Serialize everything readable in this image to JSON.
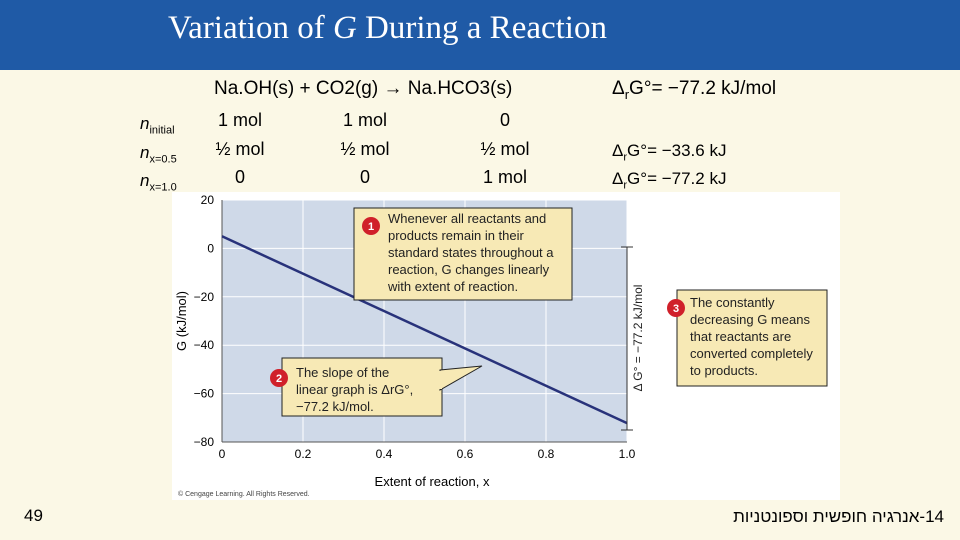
{
  "slide": {
    "title_prefix": "Variation of ",
    "title_var": "G",
    "title_suffix": " During a Reaction",
    "page_number": "49",
    "footer": "14-אנרגיה חופשית וספונטניות"
  },
  "reaction": {
    "species": [
      "Na.OH(s)",
      "CO2(g)",
      "Na.HCO3(s)"
    ],
    "plus": "+",
    "arrow": "→",
    "delta_g_total": "= −77.2 kJ/mol"
  },
  "table": {
    "rows": [
      {
        "label_main": "n",
        "label_sub": "initial",
        "values": [
          "1 mol",
          "1 mol",
          "0"
        ],
        "delta_g": ""
      },
      {
        "label_main": "n",
        "label_sub": "x=0.5",
        "values": [
          "½ mol",
          "½ mol",
          "½ mol"
        ],
        "delta_g": "= −33.6 kJ"
      },
      {
        "label_main": "n",
        "label_sub": "x=1.0",
        "values": [
          "0",
          "0",
          "1 mol"
        ],
        "delta_g": "= −77.2 kJ"
      }
    ],
    "delta_prefix": "Δ",
    "delta_sub": "r",
    "delta_g_sym": "G°"
  },
  "chart_data": {
    "type": "line",
    "xlabel": "Extent of reaction, x",
    "ylabel": "G (kJ/mol)",
    "xlim": [
      0,
      1.0
    ],
    "ylim": [
      -80,
      20
    ],
    "x_ticks": [
      "0",
      "0.2",
      "0.4",
      "0.6",
      "0.8",
      "1.0"
    ],
    "y_ticks": [
      "20",
      "0",
      "−20",
      "−40",
      "−60",
      "−80"
    ],
    "series": [
      {
        "x": [
          0,
          1.0
        ],
        "values": [
          5,
          -72.2
        ]
      }
    ],
    "bracket_label": "Δ G° = −77.2 kJ/mol",
    "grid": true,
    "copyright": "© Cengage Learning. All Rights Reserved.",
    "annotations": [
      {
        "number": "1",
        "lines": [
          "Whenever all reactants and",
          "products remain in their",
          "standard states throughout a",
          "reaction, G changes linearly",
          "with extent of reaction."
        ]
      },
      {
        "number": "2",
        "lines": [
          "The slope of the",
          "linear graph is ΔrG°,",
          "−77.2 kJ/mol."
        ]
      },
      {
        "number": "3",
        "lines": [
          "The constantly",
          "decreasing G means",
          "that reactants are",
          "converted completely",
          "to products."
        ]
      }
    ]
  },
  "colors": {
    "title_bar": "#1f5aa6",
    "slide_bg": "#fbf8e6",
    "plot_bg": "#cfd9e8",
    "line": "#28327a",
    "callout_bg": "#f7e9b5",
    "badge": "#d0202a"
  }
}
